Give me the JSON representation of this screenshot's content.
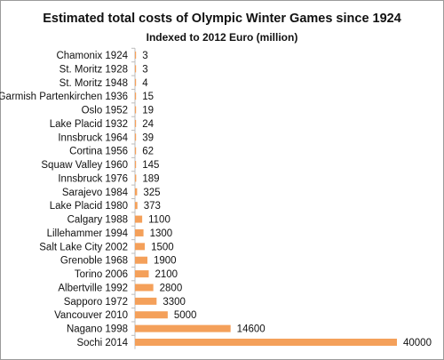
{
  "chart_data": {
    "type": "bar",
    "orientation": "horizontal",
    "title": "Estimated total costs of Olympic Winter Games since 1924",
    "subtitle": "Indexed to 2012 Euro (million)",
    "categories": [
      "Chamonix 1924",
      "St. Moritz 1928",
      "St. Moritz 1948",
      "Garmish Partenkirchen 1936",
      "Oslo 1952",
      "Lake Placid 1932",
      "Innsbruck 1964",
      "Cortina 1956",
      "Squaw Valley 1960",
      "Innsbruck 1976",
      "Sarajevo 1984",
      "Lake Placid 1980",
      "Calgary 1988",
      "Lillehammer 1994",
      "Salt Lake City 2002",
      "Grenoble 1968",
      "Torino 2006",
      "Albertville 1992",
      "Sapporo 1972",
      "Vancouver 2010",
      "Nagano 1998",
      "Sochi 2014"
    ],
    "values": [
      3,
      3,
      4,
      15,
      19,
      24,
      39,
      62,
      145,
      189,
      325,
      373,
      1100,
      1300,
      1500,
      1900,
      2100,
      2800,
      3300,
      5000,
      14600,
      40000
    ],
    "value_labels": [
      "3",
      "3",
      "4",
      "15",
      "19",
      "24",
      "39",
      "62",
      "145",
      "189",
      "325",
      "373",
      "1100",
      "1300",
      "1500",
      "1900",
      "2100",
      "2800",
      "3300",
      "5000",
      "14600",
      "40000"
    ],
    "xlim": [
      0,
      40000
    ],
    "bar_color": "#f4a05a",
    "grid": false,
    "legend": "none",
    "data_labels": "outside-end"
  }
}
